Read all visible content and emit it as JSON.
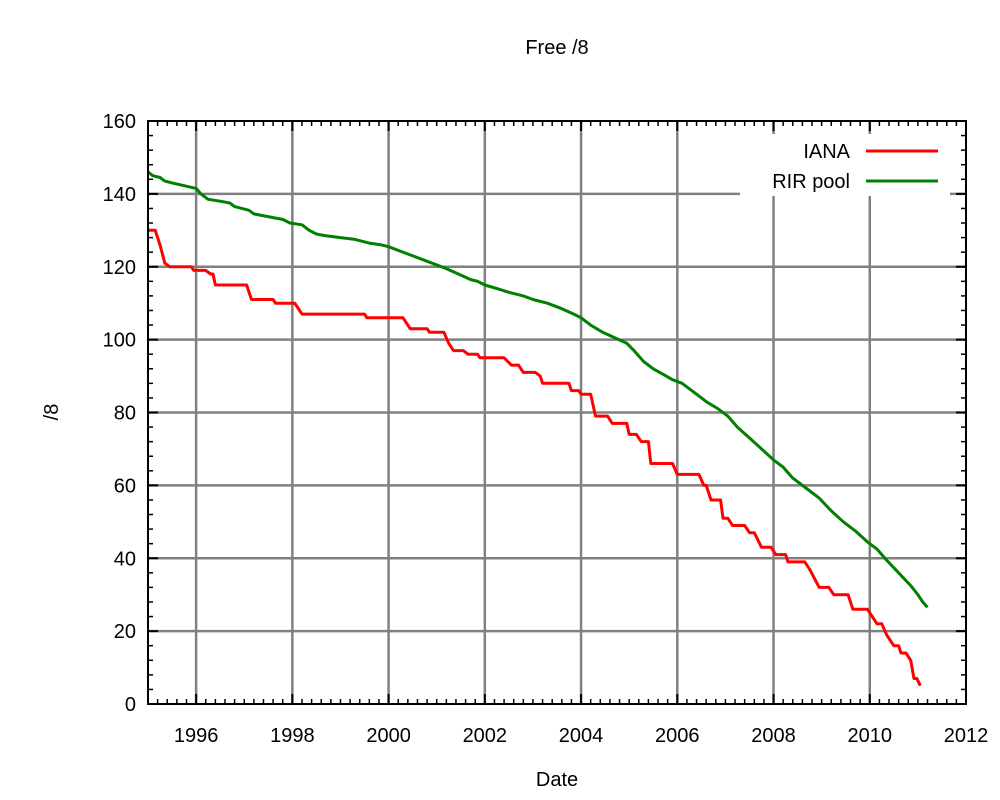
{
  "chart_data": {
    "type": "line",
    "title": "Free /8",
    "xlabel": "Date",
    "ylabel": "/8",
    "xlim": [
      1995,
      2012
    ],
    "ylim": [
      0,
      160
    ],
    "x_ticks": [
      "1996",
      "1998",
      "2000",
      "2002",
      "2004",
      "2006",
      "2008",
      "2010",
      "2012"
    ],
    "y_ticks": [
      "0",
      "20",
      "40",
      "60",
      "80",
      "100",
      "120",
      "140",
      "160"
    ],
    "grid": true,
    "legend_position": "top-right",
    "series": [
      {
        "name": "IANA",
        "color": "#ff0000",
        "points": [
          [
            1995.0,
            130
          ],
          [
            1995.15,
            130
          ],
          [
            1995.25,
            126
          ],
          [
            1995.35,
            121
          ],
          [
            1995.45,
            120
          ],
          [
            1995.9,
            120
          ],
          [
            1995.95,
            119
          ],
          [
            1996.2,
            119
          ],
          [
            1996.3,
            118
          ],
          [
            1996.35,
            118
          ],
          [
            1996.4,
            115
          ],
          [
            1997.05,
            115
          ],
          [
            1997.15,
            111
          ],
          [
            1997.6,
            111
          ],
          [
            1997.65,
            110
          ],
          [
            1998.05,
            110
          ],
          [
            1998.15,
            108
          ],
          [
            1998.2,
            107
          ],
          [
            1999.5,
            107
          ],
          [
            1999.55,
            106
          ],
          [
            2000.3,
            106
          ],
          [
            2000.45,
            103
          ],
          [
            2000.8,
            103
          ],
          [
            2000.85,
            102
          ],
          [
            2001.15,
            102
          ],
          [
            2001.25,
            99
          ],
          [
            2001.35,
            97
          ],
          [
            2001.55,
            97
          ],
          [
            2001.65,
            96
          ],
          [
            2001.85,
            96
          ],
          [
            2001.9,
            95
          ],
          [
            2002.4,
            95
          ],
          [
            2002.55,
            93
          ],
          [
            2002.7,
            93
          ],
          [
            2002.8,
            91
          ],
          [
            2003.05,
            91
          ],
          [
            2003.15,
            90
          ],
          [
            2003.2,
            88
          ],
          [
            2003.75,
            88
          ],
          [
            2003.8,
            86
          ],
          [
            2003.95,
            86
          ],
          [
            2004.0,
            85
          ],
          [
            2004.2,
            85
          ],
          [
            2004.3,
            79
          ],
          [
            2004.55,
            79
          ],
          [
            2004.65,
            77
          ],
          [
            2004.95,
            77
          ],
          [
            2005.0,
            74
          ],
          [
            2005.15,
            74
          ],
          [
            2005.25,
            72
          ],
          [
            2005.4,
            72
          ],
          [
            2005.45,
            66
          ],
          [
            2005.9,
            66
          ],
          [
            2006.0,
            63
          ],
          [
            2006.45,
            63
          ],
          [
            2006.55,
            60
          ],
          [
            2006.6,
            60
          ],
          [
            2006.7,
            56
          ],
          [
            2006.9,
            56
          ],
          [
            2006.95,
            51
          ],
          [
            2007.05,
            51
          ],
          [
            2007.15,
            49
          ],
          [
            2007.4,
            49
          ],
          [
            2007.5,
            47
          ],
          [
            2007.6,
            47
          ],
          [
            2007.75,
            43
          ],
          [
            2007.95,
            43
          ],
          [
            2008.05,
            41
          ],
          [
            2008.25,
            41
          ],
          [
            2008.3,
            39
          ],
          [
            2008.65,
            39
          ],
          [
            2008.75,
            37
          ],
          [
            2008.95,
            32
          ],
          [
            2009.15,
            32
          ],
          [
            2009.25,
            30
          ],
          [
            2009.55,
            30
          ],
          [
            2009.65,
            26
          ],
          [
            2009.95,
            26
          ],
          [
            2010.05,
            24
          ],
          [
            2010.15,
            22
          ],
          [
            2010.25,
            22
          ],
          [
            2010.35,
            19
          ],
          [
            2010.5,
            16
          ],
          [
            2010.6,
            16
          ],
          [
            2010.65,
            14
          ],
          [
            2010.75,
            14
          ],
          [
            2010.85,
            12
          ],
          [
            2010.92,
            7
          ],
          [
            2010.98,
            7
          ],
          [
            2011.05,
            5
          ]
        ]
      },
      {
        "name": "RIR pool",
        "color": "#008000",
        "points": [
          [
            1995.0,
            146
          ],
          [
            1995.1,
            145
          ],
          [
            1995.25,
            144.5
          ],
          [
            1995.35,
            143.5
          ],
          [
            1995.5,
            143
          ],
          [
            1996.0,
            141.5
          ],
          [
            1996.1,
            140
          ],
          [
            1996.25,
            138.5
          ],
          [
            1996.5,
            138
          ],
          [
            1996.7,
            137.5
          ],
          [
            1996.8,
            136.5
          ],
          [
            1997.1,
            135.5
          ],
          [
            1997.2,
            134.5
          ],
          [
            1997.6,
            133.5
          ],
          [
            1997.8,
            133
          ],
          [
            1997.95,
            132
          ],
          [
            1998.2,
            131.5
          ],
          [
            1998.35,
            130
          ],
          [
            1998.5,
            129
          ],
          [
            1998.7,
            128.5
          ],
          [
            1999.0,
            128
          ],
          [
            1999.3,
            127.5
          ],
          [
            1999.6,
            126.5
          ],
          [
            1999.85,
            126
          ],
          [
            2000.0,
            125.5
          ],
          [
            2000.2,
            124.5
          ],
          [
            2000.4,
            123.5
          ],
          [
            2000.6,
            122.5
          ],
          [
            2000.8,
            121.5
          ],
          [
            2001.0,
            120.5
          ],
          [
            2001.2,
            119.5
          ],
          [
            2001.45,
            118
          ],
          [
            2001.7,
            116.5
          ],
          [
            2001.85,
            116
          ],
          [
            2002.0,
            115
          ],
          [
            2002.25,
            114
          ],
          [
            2002.5,
            113
          ],
          [
            2002.8,
            112
          ],
          [
            2003.0,
            111
          ],
          [
            2003.3,
            110
          ],
          [
            2003.6,
            108.5
          ],
          [
            2003.85,
            107
          ],
          [
            2004.0,
            106
          ],
          [
            2004.2,
            104
          ],
          [
            2004.45,
            102
          ],
          [
            2004.7,
            100.5
          ],
          [
            2004.95,
            99
          ],
          [
            2005.1,
            97
          ],
          [
            2005.3,
            94
          ],
          [
            2005.5,
            92
          ],
          [
            2005.7,
            90.5
          ],
          [
            2005.9,
            89
          ],
          [
            2006.1,
            88
          ],
          [
            2006.3,
            86
          ],
          [
            2006.6,
            83
          ],
          [
            2006.85,
            81
          ],
          [
            2007.05,
            79
          ],
          [
            2007.25,
            76
          ],
          [
            2007.5,
            73
          ],
          [
            2007.75,
            70
          ],
          [
            2008.0,
            67
          ],
          [
            2008.2,
            65
          ],
          [
            2008.4,
            62
          ],
          [
            2008.7,
            59
          ],
          [
            2008.95,
            56.5
          ],
          [
            2009.2,
            53
          ],
          [
            2009.45,
            50
          ],
          [
            2009.7,
            47.5
          ],
          [
            2009.95,
            44.5
          ],
          [
            2010.15,
            42.5
          ],
          [
            2010.35,
            39.5
          ],
          [
            2010.6,
            36
          ],
          [
            2010.85,
            32.5
          ],
          [
            2011.0,
            30
          ],
          [
            2011.1,
            28
          ],
          [
            2011.2,
            26.5
          ]
        ]
      }
    ]
  }
}
